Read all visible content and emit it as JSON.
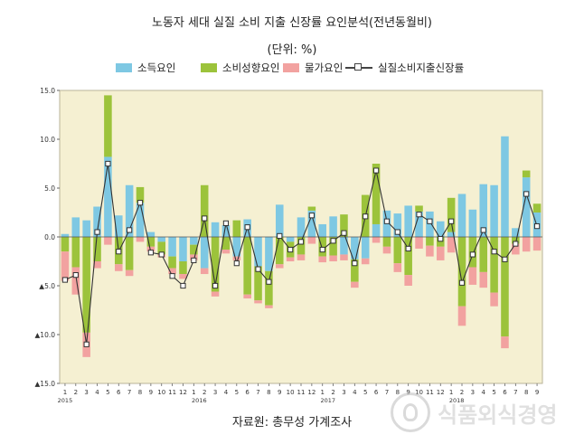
{
  "title": "노동자 세대 실질 소비 지출 신장률 요인분석(전년동월비)",
  "unit": "(단위: %)",
  "source": "자료원: 총무성 가계조사",
  "watermark": "식품외식경영",
  "colors": {
    "plot_bg": "#f5f0d2",
    "income": "#7ec8e3",
    "propensity": "#9cc33b",
    "price": "#f2a2a0",
    "line": "#333333"
  },
  "chart_data": {
    "type": "bar",
    "stacked": true,
    "title": "노동자 세대 실질 소비 지출 신장률 요인분석(전년동월비)",
    "xlabel": "",
    "ylabel": "",
    "ylim": [
      -15,
      15
    ],
    "yticks": [
      "15.0",
      "10.0",
      "5.0",
      "0.0",
      "▲5.0",
      "▲10.0",
      "▲15.0"
    ],
    "ytick_values": [
      15,
      10,
      5,
      0,
      -5,
      -10,
      -15
    ],
    "legend_position": "top",
    "categories": [
      "1",
      "2",
      "3",
      "4",
      "5",
      "6",
      "7",
      "8",
      "9",
      "10",
      "11",
      "12",
      "1",
      "2",
      "3",
      "4",
      "5",
      "6",
      "7",
      "8",
      "9",
      "10",
      "11",
      "12",
      "1",
      "2",
      "3",
      "4",
      "5",
      "6",
      "7",
      "8",
      "9",
      "10",
      "11",
      "12",
      "1",
      "2",
      "3",
      "4",
      "5",
      "6",
      "7",
      "8",
      "9"
    ],
    "year_labels": [
      {
        "index": 0,
        "label": "2015"
      },
      {
        "index": 12,
        "label": "2016"
      },
      {
        "index": 24,
        "label": "2017"
      },
      {
        "index": 36,
        "label": "2018"
      }
    ],
    "series": [
      {
        "name": "소득요인",
        "kind": "bar",
        "values": [
          0.3,
          2.0,
          1.7,
          3.1,
          8.2,
          2.2,
          5.3,
          3.5,
          0.5,
          -0.5,
          -2.0,
          -2.5,
          -0.8,
          -3.2,
          1.5,
          1.2,
          -2.0,
          1.8,
          -3.0,
          -3.5,
          3.3,
          -0.5,
          2.0,
          2.7,
          1.3,
          2.1,
          -1.8,
          -2.3,
          -2.2,
          1.3,
          2.7,
          2.4,
          3.2,
          2.6,
          2.6,
          1.6,
          0.5,
          4.4,
          2.8,
          5.4,
          5.3,
          10.3,
          0.9,
          6.1,
          2.5
        ]
      },
      {
        "name": "소비성향요인",
        "kind": "bar",
        "values": [
          -1.5,
          -3.1,
          -9.8,
          -2.5,
          6.3,
          -2.8,
          -3.4,
          1.6,
          -1.0,
          -1.3,
          -1.2,
          -1.3,
          -1.0,
          5.3,
          -5.6,
          -1.3,
          1.7,
          -5.9,
          -3.5,
          -3.5,
          -2.8,
          -1.6,
          -1.8,
          0.4,
          -2.0,
          -1.9,
          2.3,
          -2.3,
          4.3,
          6.2,
          -1.0,
          -2.7,
          -3.9,
          0.6,
          -0.9,
          -1.0,
          3.5,
          -7.1,
          -3.1,
          -3.6,
          -5.7,
          -10.2,
          -0.7,
          0.7,
          0.9
        ]
      },
      {
        "name": "물가요인",
        "kind": "bar",
        "values": [
          -3.0,
          -2.8,
          -2.5,
          -0.7,
          -0.8,
          -0.7,
          -0.6,
          -0.5,
          -0.5,
          -0.3,
          -0.6,
          -0.5,
          -0.6,
          -0.6,
          -0.5,
          -0.4,
          -0.4,
          -0.4,
          -0.3,
          -0.3,
          -0.4,
          -0.4,
          -0.6,
          -0.7,
          -0.6,
          -0.6,
          -0.6,
          -0.6,
          -0.6,
          -0.6,
          -0.7,
          -0.9,
          -1.1,
          -1.2,
          -1.1,
          -1.4,
          -1.6,
          -2.0,
          -1.8,
          -1.6,
          -1.4,
          -1.2,
          -1.1,
          -1.5,
          -1.4
        ]
      },
      {
        "name": "실질소비지출신장률",
        "kind": "line",
        "values": [
          -4.4,
          -3.9,
          -11.0,
          0.5,
          7.5,
          -1.5,
          0.7,
          3.5,
          -1.6,
          -1.8,
          -4.0,
          -5.0,
          -2.4,
          1.9,
          -5.0,
          1.4,
          -2.7,
          1.0,
          -3.3,
          -4.6,
          0.1,
          -1.3,
          -0.5,
          2.2,
          -1.3,
          -0.4,
          0.4,
          -2.7,
          2.1,
          6.8,
          1.6,
          0.5,
          -1.2,
          2.3,
          1.6,
          -0.2,
          1.6,
          -4.7,
          -1.8,
          0.7,
          -1.5,
          -2.3,
          -0.7,
          4.4,
          1.1
        ]
      }
    ]
  }
}
